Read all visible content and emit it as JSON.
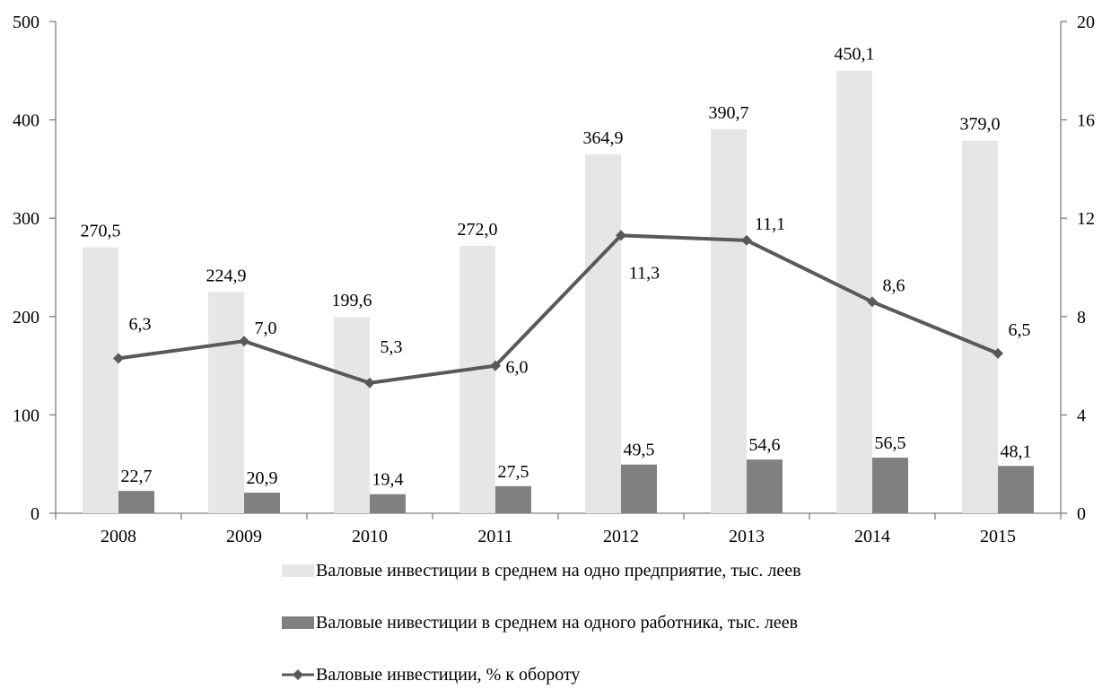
{
  "chart_data": {
    "type": "bar",
    "categories": [
      "2008",
      "2009",
      "2010",
      "2011",
      "2012",
      "2013",
      "2014",
      "2015"
    ],
    "series": [
      {
        "name": "Валовые инвестиции в среднем на одно предприятие, тыс. леев",
        "type": "bar",
        "axis": "left",
        "color": "#e6e6e6",
        "values": [
          270.5,
          224.9,
          199.6,
          272.0,
          364.9,
          390.7,
          450.1,
          379.0
        ],
        "labels": [
          "270,5",
          "224,9",
          "199,6",
          "272,0",
          "364,9",
          "390,7",
          "450,1",
          "379,0"
        ]
      },
      {
        "name": "Валовые нивестиции в среднем на одного работника, тыс. леев",
        "type": "bar",
        "axis": "left",
        "color": "#808080",
        "values": [
          22.7,
          20.9,
          19.4,
          27.5,
          49.5,
          54.6,
          56.5,
          48.1
        ],
        "labels": [
          "22,7",
          "20,9",
          "19,4",
          "27,5",
          "49,5",
          "54,6",
          "56,5",
          "48,1"
        ]
      },
      {
        "name": "Валовые инвестиции, % к обороту",
        "type": "line",
        "axis": "right",
        "color": "#595959",
        "marker": "diamond",
        "values": [
          6.3,
          7.0,
          5.3,
          6.0,
          11.3,
          11.1,
          8.6,
          6.5
        ],
        "labels": [
          "6,3",
          "7,0",
          "5,3",
          "6,0",
          "11,3",
          "11,1",
          "8,6",
          "6,5"
        ]
      }
    ],
    "y_left": {
      "min": 0,
      "max": 500,
      "ticks": [
        0,
        100,
        200,
        300,
        400,
        500
      ]
    },
    "y_right": {
      "min": 0,
      "max": 20,
      "ticks": [
        0,
        4,
        8,
        12,
        16,
        20
      ]
    },
    "grid": false,
    "legend_position": "bottom"
  }
}
